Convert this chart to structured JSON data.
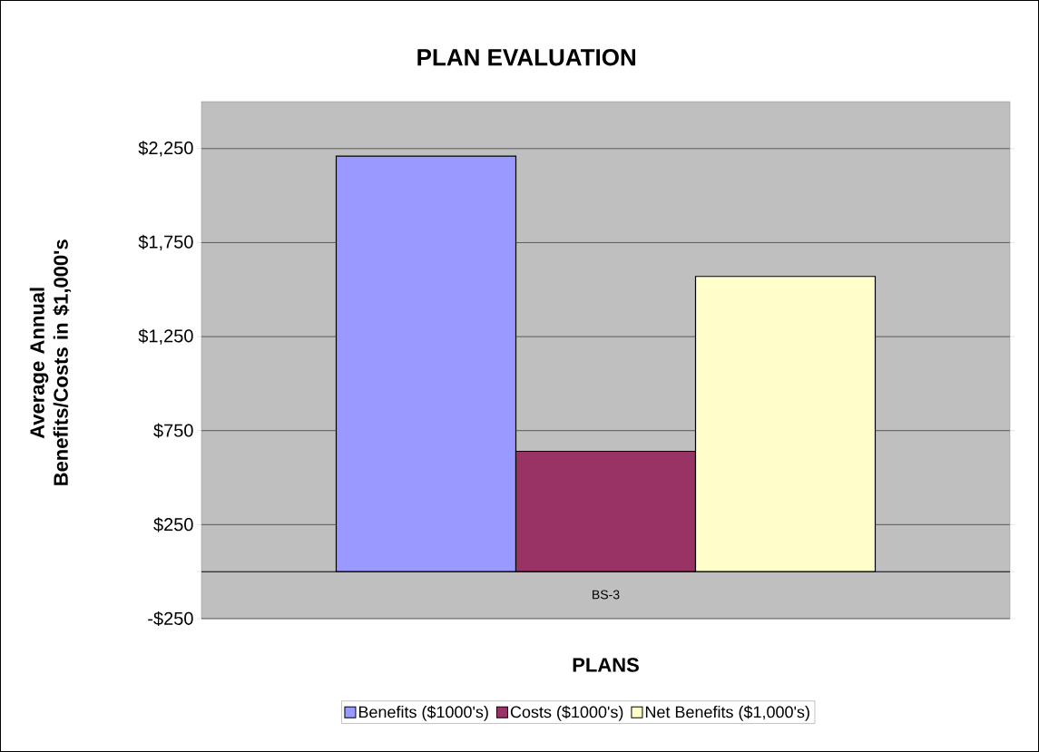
{
  "chart_data": {
    "type": "bar",
    "title": "PLAN EVALUATION",
    "xlabel": "PLANS",
    "ylabel": "Average Annual Benefits/Costs in $1,000's",
    "categories": [
      "BS-3"
    ],
    "series": [
      {
        "name": "Benefits  ($1000's)",
        "color": "#9999ff",
        "values": [
          2210
        ]
      },
      {
        "name": "Costs  ($1000's)",
        "color": "#993366",
        "values": [
          640
        ]
      },
      {
        "name": "Net Benefits ($1,000's)",
        "color": "#ffffcc",
        "values": [
          1570
        ]
      }
    ],
    "ylim": [
      -250,
      2500
    ],
    "yticks": [
      {
        "value": -250,
        "label": "-$250"
      },
      {
        "value": 250,
        "label": "$250"
      },
      {
        "value": 750,
        "label": "$750"
      },
      {
        "value": 1250,
        "label": "$1,250"
      },
      {
        "value": 1750,
        "label": "$1,750"
      },
      {
        "value": 2250,
        "label": "$2,250"
      }
    ],
    "grid": "y",
    "legend": "bottom"
  }
}
